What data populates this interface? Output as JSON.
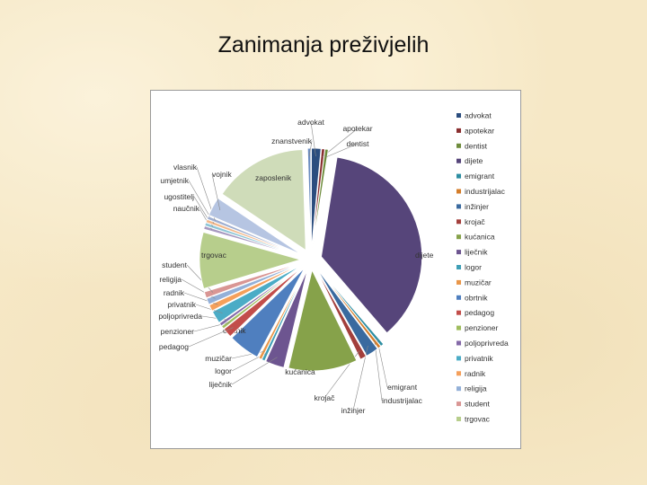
{
  "title": "Zanimanja preživjelih",
  "chart_data": {
    "type": "pie",
    "title": "",
    "legend_position": "right",
    "slices": [
      {
        "label": "advokat",
        "value": 1.5,
        "color": "#2b4d7e"
      },
      {
        "label": "apotekar",
        "value": 0.5,
        "color": "#8a2f30"
      },
      {
        "label": "dentist",
        "value": 0.5,
        "color": "#6e8c3c"
      },
      {
        "label": "dijete",
        "value": 36,
        "color": "#56457a"
      },
      {
        "label": "emigrant",
        "value": 0.5,
        "color": "#2d8ea2"
      },
      {
        "label": "industrijalac",
        "value": 0.5,
        "color": "#d47d2a"
      },
      {
        "label": "inžinjer",
        "value": 2,
        "color": "#3a6a9f"
      },
      {
        "label": "krojač",
        "value": 1,
        "color": "#a33f3c"
      },
      {
        "label": "kućanica",
        "value": 11,
        "color": "#86a24a"
      },
      {
        "label": "liječnik",
        "value": 3,
        "color": "#6d5590"
      },
      {
        "label": "logor",
        "value": 0.5,
        "color": "#3f9fb6"
      },
      {
        "label": "muzičar",
        "value": 0.5,
        "color": "#e99648"
      },
      {
        "label": "obrtnik",
        "value": 5,
        "color": "#4f7fbf"
      },
      {
        "label": "pedagog",
        "value": 1.5,
        "color": "#c24d4a"
      },
      {
        "label": "penzioner",
        "value": 0.5,
        "color": "#9fbd5e"
      },
      {
        "label": "poljoprivreda",
        "value": 0.5,
        "color": "#8469a8"
      },
      {
        "label": "privatnik",
        "value": 2,
        "color": "#4bacc6"
      },
      {
        "label": "radnik",
        "value": 1,
        "color": "#f5a05b"
      },
      {
        "label": "religija",
        "value": 1,
        "color": "#93b0d8"
      },
      {
        "label": "student",
        "value": 1,
        "color": "#d99694"
      },
      {
        "label": "trgovac",
        "value": 9,
        "color": "#b7ce8c"
      },
      {
        "label": "naučnik",
        "value": 0.5,
        "color": "#a799c0"
      },
      {
        "label": "ugostitelj",
        "value": 0.5,
        "color": "#8dc5d6"
      },
      {
        "label": "umjetnik",
        "value": 0.5,
        "color": "#f3b98b"
      },
      {
        "label": "vlasnik",
        "value": 0.5,
        "color": "#9eaed0"
      },
      {
        "label": "vojnik",
        "value": 3,
        "color": "#b6c5e2"
      },
      {
        "label": "zaposlenik",
        "value": 15,
        "color": "#cfdcb9"
      },
      {
        "label": "znanstvenik",
        "value": 0.5,
        "color": "#6b8cc0"
      }
    ],
    "legend": [
      "advokat",
      "apotekar",
      "dentist",
      "dijete",
      "emigrant",
      "industrijalac",
      "inžinjer",
      "krojač",
      "kućanica",
      "liječnik",
      "logor",
      "muzičar",
      "obrtnik",
      "pedagog",
      "penzioner",
      "poljoprivreda",
      "privatnik",
      "radnik",
      "religija",
      "student",
      "trgovac"
    ]
  }
}
